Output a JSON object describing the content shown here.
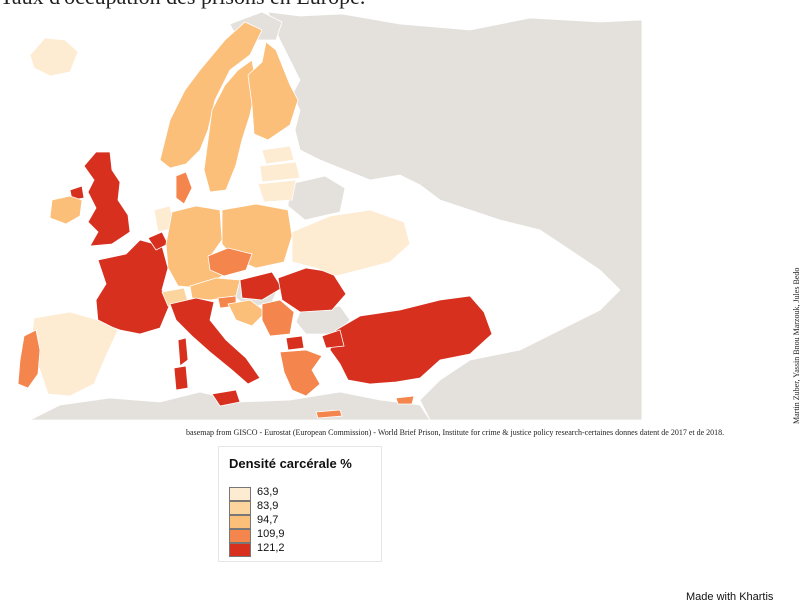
{
  "title": "Taux d'occupation des prisons en Europe.",
  "source": "basemap from GISCO - Eurostat (European Commission) - World Brief Prison, Institute for crime & justice policy research-certaines donnes datent de 2017 et de 2018.",
  "credits": "Martin Zuber, Yassin Bnou Marzouk, Jules Bedo",
  "legend": {
    "title": "Densité carcérale %",
    "items": [
      {
        "label": "63,9",
        "color": "#fdebd2"
      },
      {
        "label": "83,9",
        "color": "#fcd59e"
      },
      {
        "label": "94,7",
        "color": "#fbbf79"
      },
      {
        "label": "109,9",
        "color": "#f4854d"
      },
      {
        "label": "121,2",
        "color": "#d7301f"
      }
    ]
  },
  "footer": "Made with Khartis",
  "colors": {
    "no_data": "#e4e1dc",
    "sea": "#ffffff",
    "border": "#ffffff"
  },
  "countries": [
    {
      "name": "Norway",
      "class": 2
    },
    {
      "name": "Sweden",
      "class": 2
    },
    {
      "name": "Finland",
      "class": 2
    },
    {
      "name": "Iceland",
      "class": 0
    },
    {
      "name": "Estonia",
      "class": 0
    },
    {
      "name": "Latvia",
      "class": 0
    },
    {
      "name": "Lithuania",
      "class": 0
    },
    {
      "name": "Denmark",
      "class": 3
    },
    {
      "name": "United Kingdom",
      "class": 4
    },
    {
      "name": "Ireland",
      "class": 2
    },
    {
      "name": "France",
      "class": 4
    },
    {
      "name": "Spain",
      "class": 0
    },
    {
      "name": "Portugal",
      "class": 3
    },
    {
      "name": "Belgium",
      "class": 4
    },
    {
      "name": "Netherlands",
      "class": 0
    },
    {
      "name": "Germany",
      "class": 2
    },
    {
      "name": "Poland",
      "class": 2
    },
    {
      "name": "Czechia",
      "class": 3
    },
    {
      "name": "Austria",
      "class": 2
    },
    {
      "name": "Switzerland",
      "class": 1
    },
    {
      "name": "Italy",
      "class": 4
    },
    {
      "name": "Slovenia",
      "class": 3
    },
    {
      "name": "Hungary",
      "class": 4
    },
    {
      "name": "Croatia",
      "class": 2
    },
    {
      "name": "Romania",
      "class": 4
    },
    {
      "name": "Serbia",
      "class": 3
    },
    {
      "name": "North Macedonia",
      "class": 4
    },
    {
      "name": "Greece",
      "class": 3
    },
    {
      "name": "Turkey",
      "class": 4
    },
    {
      "name": "Cyprus",
      "class": 3
    },
    {
      "name": "Ukraine",
      "class": 0
    },
    {
      "name": "Bulgaria",
      "class": -1
    },
    {
      "name": "Belarus",
      "class": -1
    }
  ]
}
